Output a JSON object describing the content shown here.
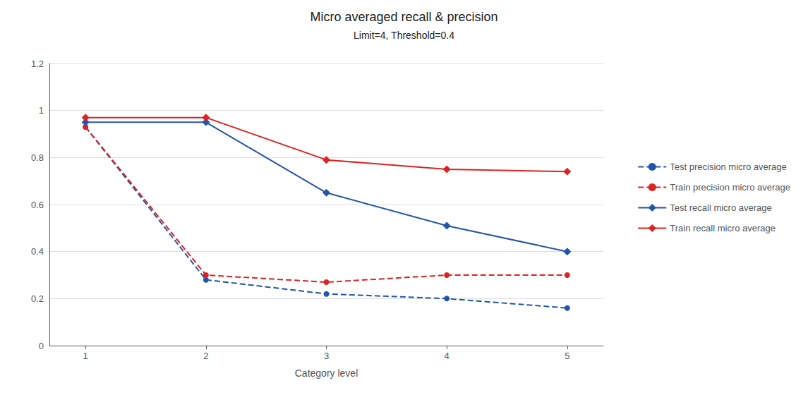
{
  "chart_data": {
    "type": "line",
    "title": "Micro averaged recall & precision",
    "subtitle": "Limit=4, Threshold=0.4",
    "xlabel": "Category level",
    "x": [
      1,
      2,
      3,
      4,
      5
    ],
    "series": [
      {
        "name": "Test precision micro average",
        "color": "#2255AA",
        "marker": "circle",
        "line_style": "dashed",
        "values": [
          0.93,
          0.28,
          0.22,
          0.2,
          0.16
        ]
      },
      {
        "name": "Train precision micro average",
        "color": "#DD2222",
        "marker": "circle",
        "line_style": "dashed",
        "values": [
          0.93,
          0.3,
          0.27,
          0.3,
          0.3
        ]
      },
      {
        "name": "Test recall micro average",
        "color": "#2255AA",
        "marker": "diamond",
        "line_style": "solid",
        "values": [
          0.95,
          0.95,
          0.65,
          0.51,
          0.4
        ]
      },
      {
        "name": "Train recall micro average",
        "color": "#DD2222",
        "marker": "diamond",
        "line_style": "solid",
        "values": [
          0.97,
          0.97,
          0.79,
          0.75,
          0.74
        ]
      }
    ],
    "xlim": [
      0.7,
      5.3
    ],
    "xticks": [
      1,
      2,
      3,
      4,
      5
    ],
    "ylim": [
      0,
      1.2
    ],
    "yticks": [
      0,
      0.2,
      0.4,
      0.6,
      0.8,
      1,
      1.2
    ],
    "grid": true,
    "legend": "right"
  }
}
